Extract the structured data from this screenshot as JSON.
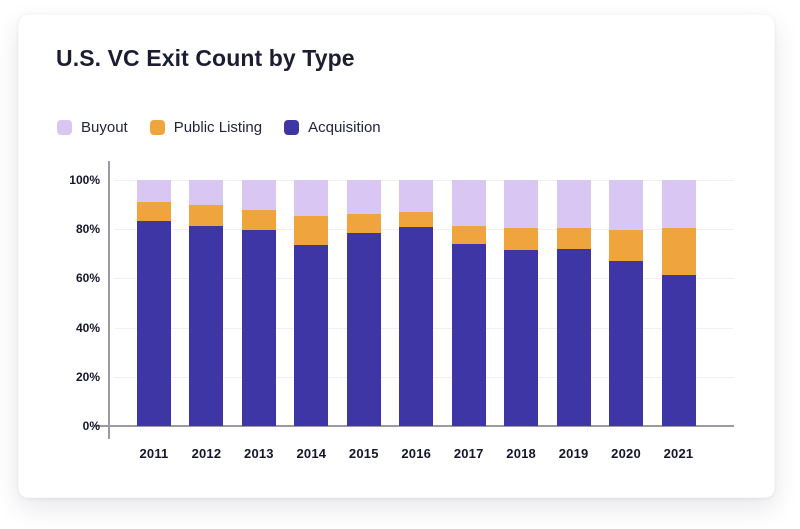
{
  "card": {
    "title": "U.S. VC Exit Count by Type"
  },
  "legend": {
    "items": [
      {
        "id": "buyout",
        "label": "Buyout",
        "color": "#d9c6f3"
      },
      {
        "id": "public-listing",
        "label": "Public Listing",
        "color": "#f0a43e"
      },
      {
        "id": "acquisition",
        "label": "Acquisition",
        "color": "#3e36a4"
      }
    ]
  },
  "chart_data": {
    "type": "bar",
    "variant": "stacked-percent",
    "title": "U.S. VC Exit Count by Type",
    "categories": [
      "2011",
      "2012",
      "2013",
      "2014",
      "2015",
      "2016",
      "2017",
      "2018",
      "2019",
      "2020",
      "2021"
    ],
    "series": [
      {
        "name": "Acquisition",
        "color": "#3e36a4",
        "values": [
          83.5,
          81.5,
          79.5,
          73.5,
          78.5,
          81.0,
          74.0,
          71.5,
          72.0,
          67.0,
          61.5
        ]
      },
      {
        "name": "Public Listing",
        "color": "#f0a43e",
        "values": [
          7.5,
          8.5,
          8.5,
          12.0,
          7.5,
          6.0,
          7.5,
          9.0,
          8.5,
          12.5,
          19.0
        ]
      },
      {
        "name": "Buyout",
        "color": "#d9c6f3",
        "values": [
          9.0,
          10.0,
          12.0,
          14.5,
          14.0,
          13.0,
          18.5,
          19.5,
          19.5,
          20.5,
          19.5
        ]
      }
    ],
    "stack_order_bottom_to_top": [
      "Acquisition",
      "Public Listing",
      "Buyout"
    ],
    "yticks": [
      "0%",
      "20%",
      "40%",
      "60%",
      "80%",
      "100%"
    ],
    "ylim": [
      0,
      100
    ],
    "unit": "percent",
    "grid": "horizontal",
    "legend_position": "top-left"
  }
}
